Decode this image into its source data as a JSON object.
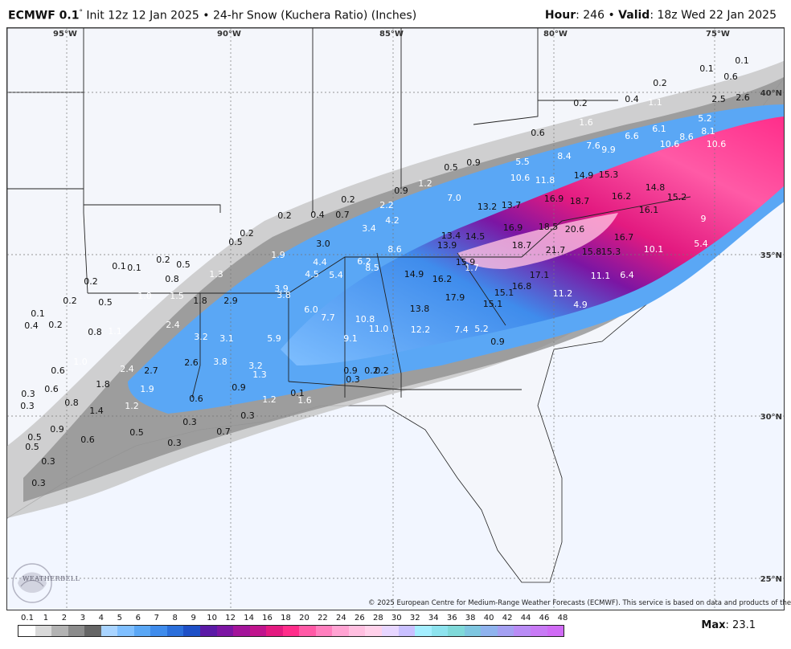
{
  "header": {
    "model": "ECMWF 0.1",
    "degree": "°",
    "init": "Init 12z 12 Jan 2025",
    "bullet": "•",
    "product": "24-hr Snow (Kuchera Ratio) (Inches)",
    "hour_label": "Hour",
    "hour_value": ": 246",
    "valid_label": "Valid",
    "valid_value": ": 18z Wed 22 Jan 2025"
  },
  "coords": {
    "lon": [
      "95°W",
      "90°W",
      "85°W",
      "80°W",
      "75°W"
    ],
    "lat": [
      "40°N",
      "35°N",
      "30°N",
      "25°N"
    ]
  },
  "map_values": [
    [
      "0.1",
      ""
    ],
    [
      "0.1",
      ""
    ],
    [
      "0.6",
      ""
    ],
    [
      "2.5",
      ""
    ],
    [
      "2.6",
      ""
    ],
    [
      "0.2",
      ""
    ],
    [
      "0.2",
      ""
    ],
    [
      "0.4",
      ""
    ],
    [
      "1.1",
      ""
    ],
    [
      "5.2",
      ""
    ],
    [
      "1.6",
      ""
    ],
    [
      "6.1",
      ""
    ],
    [
      "8.1",
      ""
    ],
    [
      "0.6",
      ""
    ],
    [
      "6.6",
      ""
    ],
    [
      "10.6",
      ""
    ],
    [
      "8.6",
      ""
    ],
    [
      "10.6",
      ""
    ],
    [
      "7.6",
      ""
    ],
    [
      "9.9",
      ""
    ],
    [
      "8.4",
      ""
    ],
    [
      "0.5",
      ""
    ],
    [
      "0.9",
      ""
    ],
    [
      "5.5",
      ""
    ],
    [
      "14.9",
      ""
    ],
    [
      "15.3",
      ""
    ],
    [
      "10.6",
      ""
    ],
    [
      "11.8",
      ""
    ],
    [
      "14.8",
      ""
    ],
    [
      "1.2",
      ""
    ],
    [
      "0.9",
      ""
    ],
    [
      "15.2",
      ""
    ],
    [
      "16.2",
      ""
    ],
    [
      "7.0",
      ""
    ],
    [
      "16.9",
      ""
    ],
    [
      "18.7",
      ""
    ],
    [
      "0.2",
      ""
    ],
    [
      "2.2",
      ""
    ],
    [
      "13.2",
      ""
    ],
    [
      "13.7",
      ""
    ],
    [
      "16.1",
      ""
    ],
    [
      "9",
      ""
    ],
    [
      "0.2",
      ""
    ],
    [
      "0.4",
      ""
    ],
    [
      "0.7",
      ""
    ],
    [
      "4.2",
      ""
    ],
    [
      "3.4",
      ""
    ],
    [
      "16.9",
      ""
    ],
    [
      "18.5",
      ""
    ],
    [
      "20.6",
      ""
    ],
    [
      "13.4",
      ""
    ],
    [
      "14.5",
      ""
    ],
    [
      "16.7",
      ""
    ],
    [
      "0.2",
      ""
    ],
    [
      "0.5",
      ""
    ],
    [
      "3.0",
      ""
    ],
    [
      "18.7",
      ""
    ],
    [
      "5.4",
      ""
    ],
    [
      "1.9",
      ""
    ],
    [
      "8.6",
      ""
    ],
    [
      "13.9",
      ""
    ],
    [
      "21.7",
      ""
    ],
    [
      "15.8",
      ""
    ],
    [
      "15.3",
      ""
    ],
    [
      "10.1",
      ""
    ],
    [
      "0.2",
      ""
    ],
    [
      "0.5",
      ""
    ],
    [
      "4.4",
      ""
    ],
    [
      "6.2",
      ""
    ],
    [
      "15.9",
      ""
    ],
    [
      "0.1",
      ""
    ],
    [
      "0.1",
      ""
    ],
    [
      "8.5",
      ""
    ],
    [
      "1.7",
      ""
    ],
    [
      "1.3",
      ""
    ],
    [
      "4.5",
      ""
    ],
    [
      "5.4",
      ""
    ],
    [
      "14.9",
      ""
    ],
    [
      "16.2",
      ""
    ],
    [
      "17.1",
      ""
    ],
    [
      "11.1",
      ""
    ],
    [
      "6.4",
      ""
    ],
    [
      "0.8",
      ""
    ],
    [
      "16.8",
      ""
    ],
    [
      "0.2",
      ""
    ],
    [
      "3.9",
      ""
    ],
    [
      "3.8",
      ""
    ],
    [
      "1.0",
      ""
    ],
    [
      "1.5",
      ""
    ],
    [
      "11.2",
      ""
    ],
    [
      "0.2",
      ""
    ],
    [
      "0.5",
      ""
    ],
    [
      "1.8",
      ""
    ],
    [
      "2.9",
      ""
    ],
    [
      "13.8",
      ""
    ],
    [
      "17.9",
      ""
    ],
    [
      "15.1",
      ""
    ],
    [
      "15.1",
      ""
    ],
    [
      "4.9",
      ""
    ],
    [
      "6.0",
      ""
    ],
    [
      "0.1",
      ""
    ],
    [
      "0.4",
      ""
    ],
    [
      "0.2",
      ""
    ],
    [
      "7.7",
      ""
    ],
    [
      "10.8",
      ""
    ],
    [
      "2.4",
      ""
    ],
    [
      "0.8",
      ""
    ],
    [
      "1.1",
      ""
    ],
    [
      "11.0",
      ""
    ],
    [
      "12.2",
      ""
    ],
    [
      "7.4",
      ""
    ],
    [
      "5.2",
      ""
    ],
    [
      "3.2",
      ""
    ],
    [
      "3.1",
      ""
    ],
    [
      "5.9",
      ""
    ],
    [
      "9.1",
      ""
    ],
    [
      "0.9",
      ""
    ],
    [
      "1.0",
      ""
    ],
    [
      "2.6",
      ""
    ],
    [
      "3.8",
      ""
    ],
    [
      "3.2",
      ""
    ],
    [
      "0.9",
      ""
    ],
    [
      "0.2",
      ""
    ],
    [
      "0.2",
      ""
    ],
    [
      "0.6",
      ""
    ],
    [
      "2.4",
      ""
    ],
    [
      "2.7",
      ""
    ],
    [
      "1.3",
      ""
    ],
    [
      "0.3",
      ""
    ],
    [
      "1.8",
      ""
    ],
    [
      "0.9",
      ""
    ],
    [
      "0.6",
      ""
    ],
    [
      "1.2",
      ""
    ],
    [
      "1.9",
      ""
    ],
    [
      "0.6",
      ""
    ],
    [
      "0.1",
      ""
    ],
    [
      "0.3",
      ""
    ],
    [
      "0.3",
      ""
    ],
    [
      "0.8",
      ""
    ],
    [
      "1.4",
      ""
    ],
    [
      "1.2",
      ""
    ],
    [
      "1.6",
      ""
    ],
    [
      "0.3",
      ""
    ],
    [
      "0.3",
      ""
    ],
    [
      "0.9",
      ""
    ],
    [
      "0.5",
      ""
    ],
    [
      "0.7",
      ""
    ],
    [
      "0.5",
      ""
    ],
    [
      "0.6",
      ""
    ],
    [
      "0.3",
      ""
    ],
    [
      "0.5",
      ""
    ],
    [
      "0.3",
      ""
    ],
    [
      "0.3",
      ""
    ]
  ],
  "credit": "© 2025 European Centre for Medium-Range Weather Forecasts (ECMWF). This service is based on data and products of the ECMWF.",
  "logo_text": "WEATHERBELL",
  "scale": {
    "ticks": [
      "0.1",
      "1",
      "2",
      "3",
      "4",
      "5",
      "6",
      "7",
      "8",
      "9",
      "10",
      "12",
      "14",
      "16",
      "18",
      "20",
      "22",
      "24",
      "26",
      "28",
      "30",
      "32",
      "34",
      "36",
      "38",
      "40",
      "42",
      "44",
      "46",
      "48"
    ],
    "colors": [
      "#ffffff",
      "#d9d9d9",
      "#b3b3b3",
      "#8c8c8c",
      "#666666",
      "#a9d4ff",
      "#7fbfff",
      "#5aa7f5",
      "#3f8cec",
      "#2b6fdb",
      "#1e50c7",
      "#5b1aa6",
      "#7c15a3",
      "#a3149a",
      "#c0148d",
      "#e31a80",
      "#ff2d8a",
      "#ff5aa6",
      "#ff7fbe",
      "#ffa3d2",
      "#ffbfe0",
      "#ffd1ea",
      "#e7d6ff",
      "#c9c0ff",
      "#a4eeff",
      "#8de3ee",
      "#7fd9d9",
      "#7ec6e0",
      "#8fb3ee",
      "#a4a0f2",
      "#b98cf5",
      "#c87af5",
      "#d06bf5"
    ],
    "max_label": "Max",
    "max_value": ": 23.1"
  }
}
